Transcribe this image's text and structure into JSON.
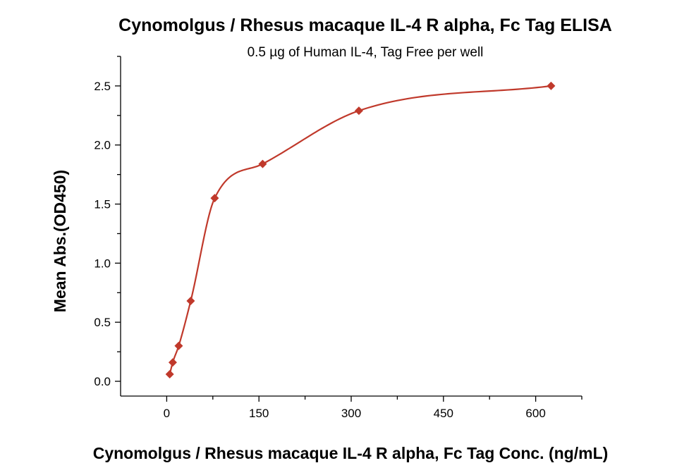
{
  "chart_data": {
    "type": "scatter",
    "title": "Cynomolgus / Rhesus macaque IL-4 R alpha, Fc Tag ELISA",
    "subtitle": "0.5 µg of Human IL-4, Tag Free per well",
    "xlabel": "Cynomolgus / Rhesus macaque IL-4 R alpha, Fc Tag Conc. (ng/mL)",
    "ylabel": "Mean Abs.(OD450)",
    "xlim": [
      -75,
      675
    ],
    "ylim": [
      -0.125,
      2.75
    ],
    "xticks": [
      0,
      150,
      300,
      450,
      600
    ],
    "xtick_labels": [
      "0",
      "150",
      "300",
      "450",
      "600"
    ],
    "x_minor_step": 75,
    "yticks": [
      0.0,
      0.5,
      1.0,
      1.5,
      2.0,
      2.5
    ],
    "ytick_labels": [
      "0.0",
      "0.5",
      "1.0",
      "1.5",
      "2.0",
      "2.5"
    ],
    "y_minor_step": 0.25,
    "grid": false,
    "legend": "none",
    "series": [
      {
        "marker": "diamond",
        "color": "#c0392b",
        "x": [
          4.9,
          9.8,
          19.5,
          39,
          78,
          156,
          312.5,
          625
        ],
        "y": [
          0.06,
          0.16,
          0.3,
          0.68,
          1.55,
          1.84,
          2.29,
          2.5
        ],
        "fit": "four-parameter logistic curve"
      }
    ]
  }
}
